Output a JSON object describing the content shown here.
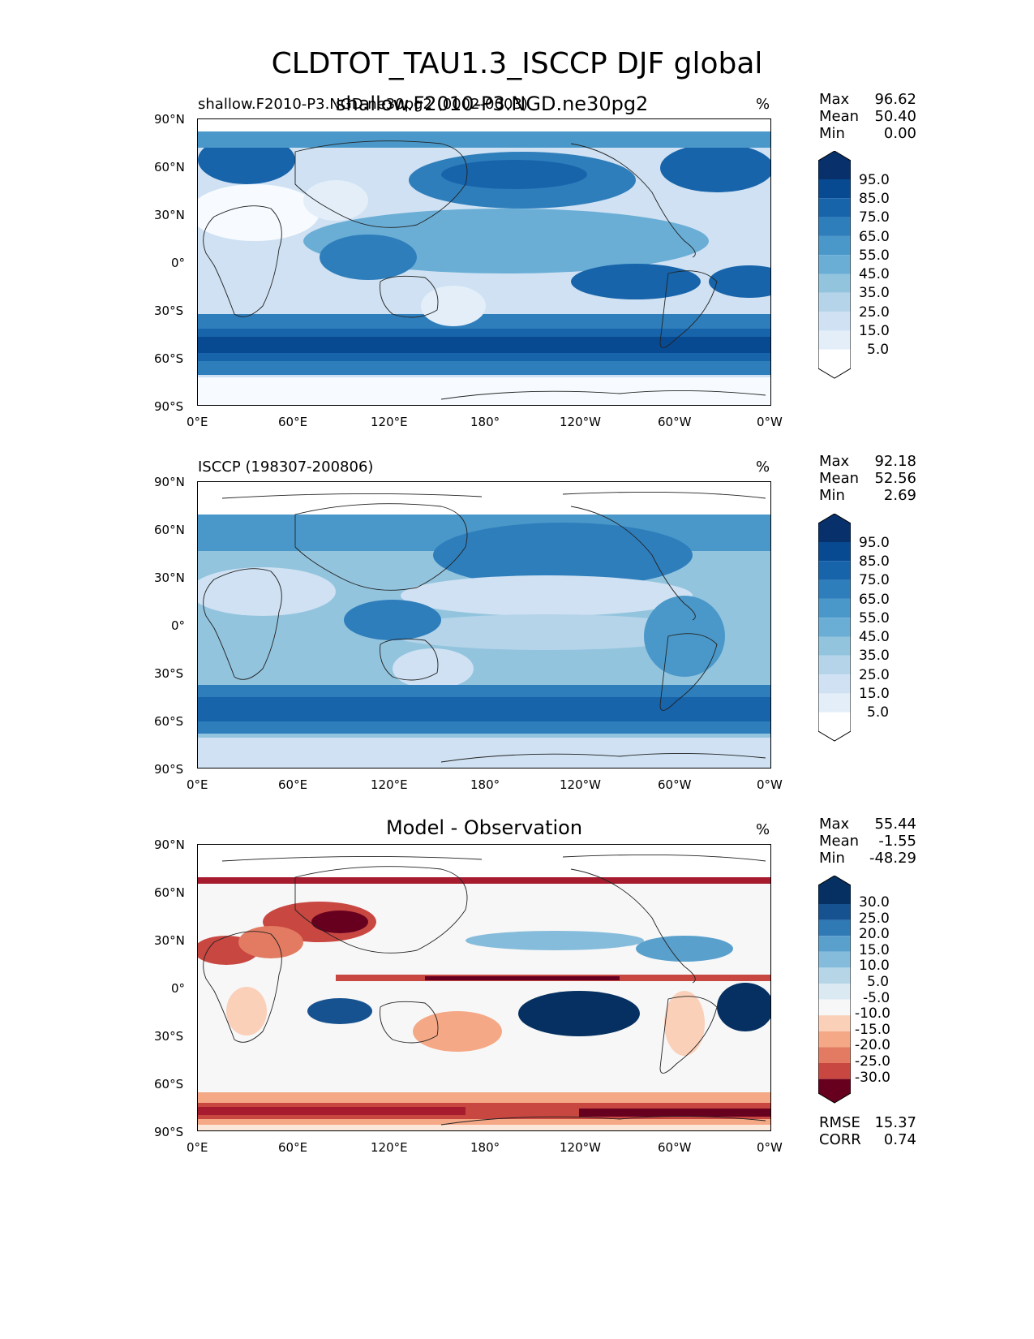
{
  "figure": {
    "suptitle": "CLDTOT_TAU1.3_ISCCP DJF global"
  },
  "chart_data": [
    {
      "type": "contour-map",
      "left_title": "shallow.F2010-P3.NGD.ne30pg2 (0002-0003)",
      "center_title": "shallow.F2010-P3.NGD.ne30pg2",
      "units": "%",
      "stats": {
        "max_label": "Max",
        "max": "96.62",
        "mean_label": "Mean",
        "mean": "50.40",
        "min_label": "Min",
        "min": "0.00"
      },
      "colorbar_levels": [
        "95.0",
        "85.0",
        "75.0",
        "65.0",
        "55.0",
        "45.0",
        "35.0",
        "25.0",
        "15.0",
        "5.0"
      ],
      "colormap": "Blues",
      "xticks": [
        "0°E",
        "60°E",
        "120°E",
        "180°",
        "120°W",
        "60°W",
        "0°W"
      ],
      "yticks": [
        "90°N",
        "60°N",
        "30°N",
        "0°",
        "30°S",
        "60°S",
        "90°S"
      ]
    },
    {
      "type": "contour-map",
      "left_title": "ISCCP (198307-200806)",
      "center_title": "",
      "units": "%",
      "stats": {
        "max_label": "Max",
        "max": "92.18",
        "mean_label": "Mean",
        "mean": "52.56",
        "min_label": "Min",
        "min": "2.69"
      },
      "colorbar_levels": [
        "95.0",
        "85.0",
        "75.0",
        "65.0",
        "55.0",
        "45.0",
        "35.0",
        "25.0",
        "15.0",
        "5.0"
      ],
      "colormap": "Blues",
      "xticks": [
        "0°E",
        "60°E",
        "120°E",
        "180°",
        "120°W",
        "60°W",
        "0°W"
      ],
      "yticks": [
        "90°N",
        "60°N",
        "30°N",
        "0°",
        "30°S",
        "60°S",
        "90°S"
      ]
    },
    {
      "type": "contour-map",
      "left_title": "",
      "center_title": "Model - Observation",
      "units": "%",
      "stats": {
        "max_label": "Max",
        "max": "55.44",
        "mean_label": "Mean",
        "mean": "-1.55",
        "min_label": "Min",
        "min": "-48.29"
      },
      "colorbar_levels": [
        "30.0",
        "25.0",
        "20.0",
        "15.0",
        "10.0",
        "5.0",
        "-5.0",
        "-10.0",
        "-15.0",
        "-20.0",
        "-25.0",
        "-30.0"
      ],
      "colormap": "RdBu",
      "extra": {
        "rmse_label": "RMSE",
        "rmse": "15.37",
        "corr_label": "CORR",
        "corr": "0.74"
      },
      "xticks": [
        "0°E",
        "60°E",
        "120°E",
        "180°",
        "120°W",
        "60°W",
        "0°W"
      ],
      "yticks": [
        "90°N",
        "60°N",
        "30°N",
        "0°",
        "30°S",
        "60°S",
        "90°S"
      ]
    }
  ],
  "colors": {
    "blues": [
      "#f7fbff",
      "#e3eef9",
      "#cfe1f2",
      "#b5d4e9",
      "#93c4de",
      "#6aaed6",
      "#4a98c9",
      "#2e7ebc",
      "#1764ab",
      "#084a92",
      "#08306b"
    ],
    "rdbu_neg": [
      "#67001f",
      "#a61c2e",
      "#c94741",
      "#e27b62",
      "#f5a886",
      "#fbd0b9",
      "#fbe6da"
    ],
    "rdbu_pos": [
      "#f7f7f7",
      "#dbe9f2",
      "#b6d6e8",
      "#86bcdb",
      "#5aa0cd",
      "#2f79b5",
      "#175290",
      "#053061"
    ]
  }
}
